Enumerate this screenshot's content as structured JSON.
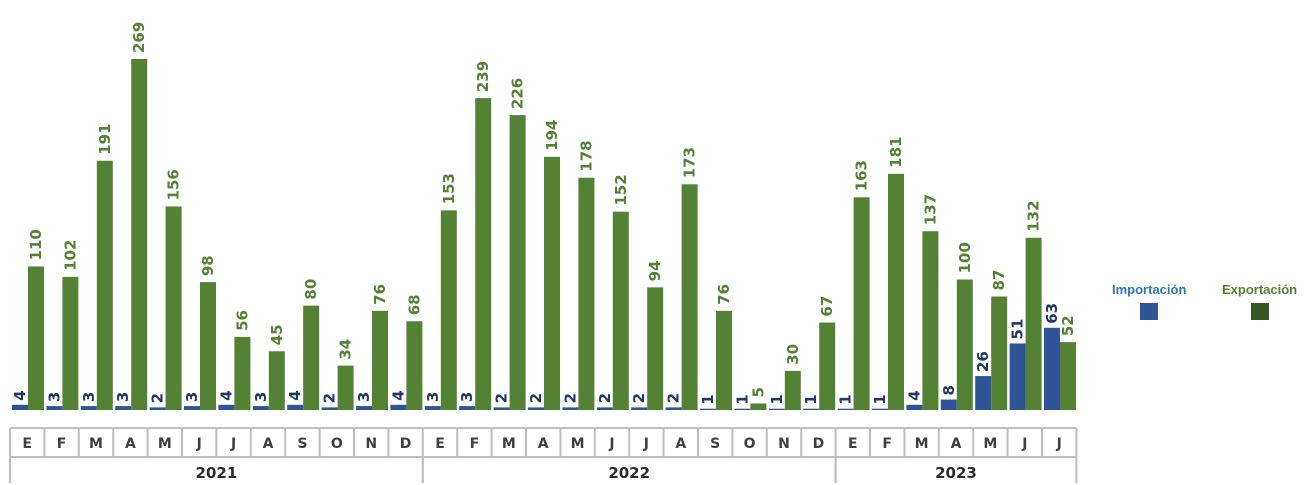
{
  "chart_data": {
    "type": "bar",
    "categories": [
      "E",
      "F",
      "M",
      "A",
      "M",
      "J",
      "J",
      "A",
      "S",
      "O",
      "N",
      "D",
      "E",
      "F",
      "M",
      "A",
      "M",
      "J",
      "J",
      "A",
      "S",
      "O",
      "N",
      "D",
      "E",
      "F",
      "M",
      "A",
      "M",
      "J",
      "J"
    ],
    "groups": [
      {
        "label": "2021",
        "count": 12
      },
      {
        "label": "2022",
        "count": 12
      },
      {
        "label": "2023",
        "count": 7
      }
    ],
    "series": [
      {
        "name": "Importación",
        "color": "#2f5597",
        "values": [
          4,
          3,
          3,
          3,
          2,
          3,
          4,
          3,
          4,
          2,
          3,
          4,
          3,
          3,
          2,
          2,
          2,
          2,
          2,
          2,
          1,
          1,
          1,
          1,
          1,
          1,
          4,
          8,
          26,
          51,
          63
        ]
      },
      {
        "name": "Exportación",
        "color": "#548235",
        "values": [
          110,
          102,
          191,
          269,
          156,
          98,
          56,
          45,
          80,
          34,
          76,
          68,
          153,
          239,
          226,
          194,
          178,
          152,
          94,
          173,
          76,
          5,
          30,
          67,
          163,
          181,
          137,
          100,
          87,
          132,
          52
        ]
      }
    ],
    "ylim": [
      0,
      280
    ],
    "label_colors": {
      "import": "#1f3864",
      "export": "#548235"
    },
    "legend_position": "right"
  },
  "legend": {
    "import_label": "Importación",
    "export_label": "Exportación",
    "import_color": "#2f5597",
    "export_color": "#375623"
  }
}
